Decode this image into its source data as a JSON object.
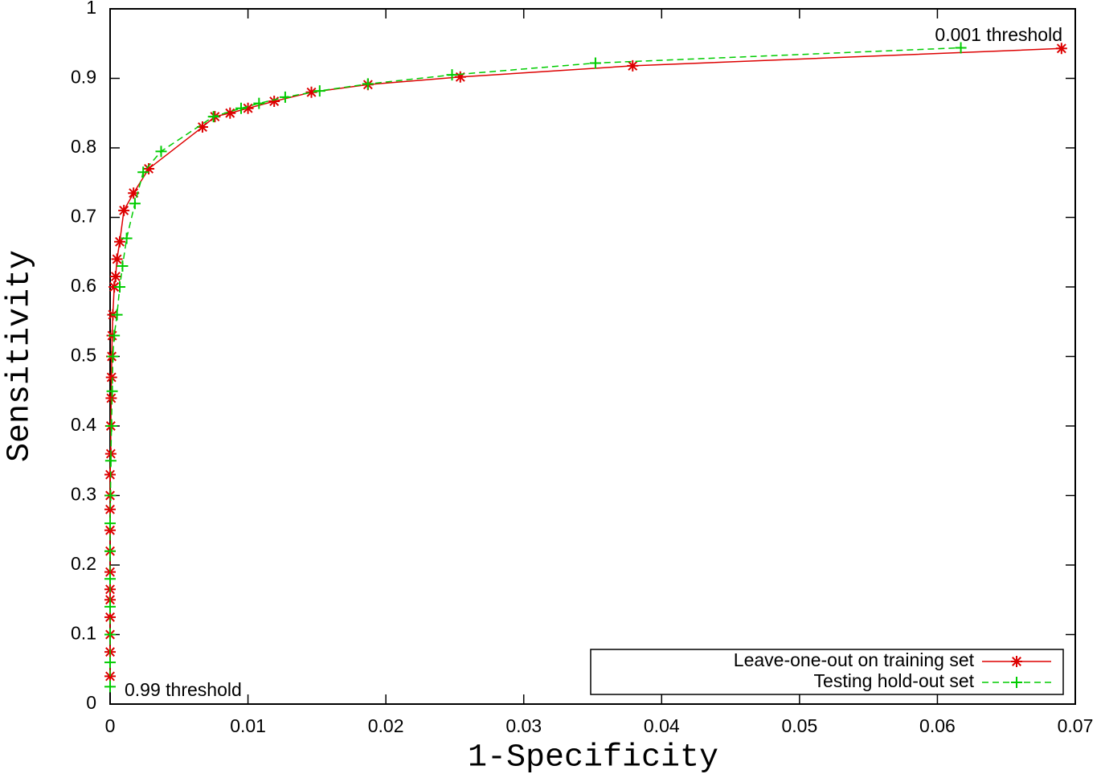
{
  "chart_data": {
    "type": "line",
    "xlabel": "1-Specificity",
    "ylabel": "Sensitivity",
    "xlim": [
      0,
      0.07
    ],
    "ylim": [
      0,
      1
    ],
    "xticks": [
      0,
      0.01,
      0.02,
      0.03,
      0.04,
      0.05,
      0.06,
      0.07
    ],
    "yticks": [
      0,
      0.1,
      0.2,
      0.3,
      0.4,
      0.5,
      0.6,
      0.7,
      0.8,
      0.9,
      1
    ],
    "legend": "lower right",
    "annotations": [
      "0.001 threshold",
      "0.99 threshold"
    ],
    "series": [
      {
        "name": "Leave-one-out on training set",
        "color": "#dd0000",
        "marker": "star",
        "dashed": false,
        "x": [
          0,
          0,
          0,
          0,
          0,
          0,
          0,
          0,
          0,
          0,
          0,
          0,
          5e-05,
          5e-05,
          8e-05,
          0.0001,
          0.00012,
          0.00015,
          0.0002,
          0.0003,
          0.0004,
          0.0005,
          0.0007,
          0.001,
          0.0017,
          0.0028,
          0.0067,
          0.0076,
          0.0087,
          0.01,
          0.0119,
          0.0146,
          0.0187,
          0.0254,
          0.0379,
          0.069
        ],
        "values": [
          0.04,
          0.075,
          0.1,
          0.125,
          0.15,
          0.165,
          0.19,
          0.22,
          0.25,
          0.28,
          0.3,
          0.33,
          0.36,
          0.4,
          0.44,
          0.47,
          0.5,
          0.53,
          0.56,
          0.6,
          0.615,
          0.64,
          0.665,
          0.71,
          0.735,
          0.77,
          0.83,
          0.845,
          0.85,
          0.857,
          0.867,
          0.88,
          0.891,
          0.902,
          0.918,
          0.943
        ]
      },
      {
        "name": "Testing hold-out set",
        "color": "#00cc00",
        "marker": "plus",
        "dashed": true,
        "x": [
          0,
          0,
          0,
          0,
          0,
          0,
          0,
          3e-05,
          5e-05,
          0.0001,
          0.00015,
          0.0002,
          0.0003,
          0.0005,
          0.0007,
          0.0009,
          0.0012,
          0.0018,
          0.0024,
          0.0037,
          0.0075,
          0.0095,
          0.0108,
          0.0127,
          0.0152,
          0.0187,
          0.0248,
          0.0352,
          0.0617
        ],
        "values": [
          0.025,
          0.06,
          0.1,
          0.14,
          0.18,
          0.22,
          0.26,
          0.3,
          0.35,
          0.4,
          0.45,
          0.5,
          0.53,
          0.56,
          0.6,
          0.63,
          0.67,
          0.72,
          0.765,
          0.795,
          0.845,
          0.857,
          0.864,
          0.873,
          0.882,
          0.892,
          0.905,
          0.922,
          0.944
        ]
      }
    ]
  }
}
